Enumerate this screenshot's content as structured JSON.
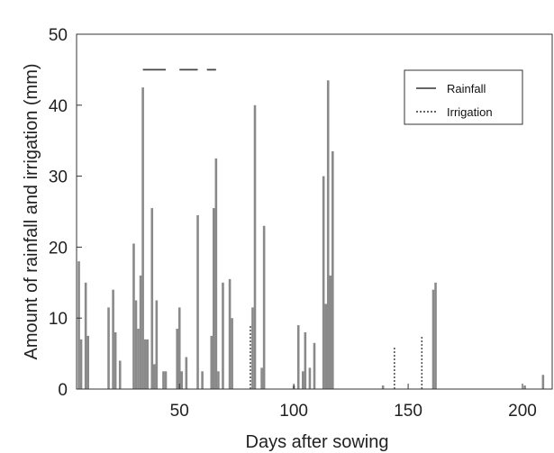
{
  "chart_data": {
    "type": "bar",
    "xlabel": "Days after sowing",
    "ylabel": "Amount of rainfall and irrigation (mm)",
    "xlim": [
      5,
      213
    ],
    "ylim": [
      0,
      50
    ],
    "xticks": [
      50,
      100,
      150,
      200
    ],
    "yticks": [
      0,
      10,
      20,
      30,
      40,
      50
    ],
    "grid": false,
    "legend_position": "top-right",
    "legend": [
      {
        "name": "Rainfall",
        "style": "solid"
      },
      {
        "name": "Irrigation",
        "style": "dotted"
      }
    ],
    "colors": {
      "rainfall": "#8a8a8a",
      "irrigation": "#555555",
      "axis": "#333333"
    },
    "series": [
      {
        "name": "Rainfall",
        "x": [
          6,
          7,
          9,
          10,
          19,
          21,
          22,
          24,
          30,
          31,
          32,
          33,
          34,
          35,
          36,
          38,
          39,
          40,
          43,
          44,
          49,
          50,
          51,
          53,
          58,
          60,
          64,
          65,
          66,
          67,
          69,
          72,
          73,
          82,
          83,
          86,
          87,
          100,
          102,
          104,
          105,
          107,
          109,
          113,
          114,
          115,
          116,
          117,
          139,
          161,
          162,
          201,
          209
        ],
        "values": [
          18,
          7,
          15,
          7.5,
          11.5,
          14,
          8,
          4,
          20.5,
          12.5,
          8.5,
          16,
          42.5,
          7,
          7,
          25.5,
          3.5,
          12.5,
          2.5,
          2.5,
          8.5,
          11.5,
          2.5,
          4.5,
          24.5,
          2.5,
          7.5,
          25.5,
          32.5,
          2.5,
          15,
          15.5,
          10,
          11.5,
          40,
          3,
          23,
          0.5,
          9,
          2.5,
          8,
          3,
          6.5,
          30,
          12,
          43.5,
          16,
          33.5,
          0.5,
          14,
          15,
          0.5,
          2
        ]
      },
      {
        "name": "Irrigation",
        "x": [
          34,
          40,
          46,
          51,
          54,
          61,
          66,
          71,
          81,
          144,
          156
        ],
        "values": [
          0,
          0,
          0,
          0,
          0,
          0,
          0,
          0,
          9,
          6,
          7.5
        ]
      }
    ],
    "dashed_marker": {
      "y": 45,
      "segments": [
        [
          34,
          44
        ],
        [
          50,
          58
        ],
        [
          62,
          66
        ]
      ]
    }
  }
}
